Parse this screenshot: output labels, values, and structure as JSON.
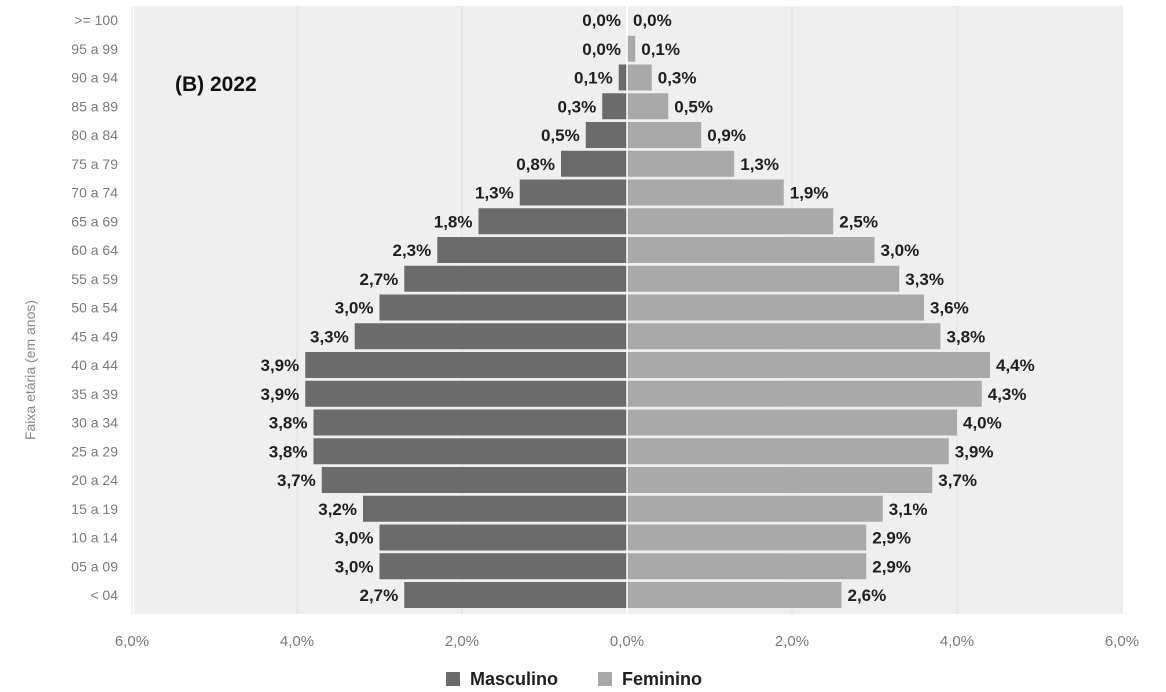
{
  "chart_data": {
    "type": "bar",
    "orientation": "horizontal-population-pyramid",
    "title": "(B) 2022",
    "ylabel": "Faixa etária (em anos)",
    "xlabel": "",
    "xlim": [
      -6.0,
      6.0
    ],
    "x_ticks": [
      "6,0%",
      "4,0%",
      "2,0%",
      "0,0%",
      "2,0%",
      "4,0%",
      "6,0%"
    ],
    "x_tick_values": [
      -6,
      -4,
      -2,
      0,
      2,
      4,
      6
    ],
    "grid": "vertical",
    "legend_position": "bottom",
    "categories": [
      ">= 100",
      "95 a 99",
      "90 a 94",
      "85 a 89",
      "80 a 84",
      "75 a 79",
      "70 a 74",
      "65 a 69",
      "60 a 64",
      "55 a 59",
      "50 a 54",
      "45 a 49",
      "40 a 44",
      "35 a 39",
      "30 a 34",
      "25 a 29",
      "20 a 24",
      "15 a 19",
      "10 a 14",
      "05 a 09",
      "< 04"
    ],
    "series": [
      {
        "name": "Masculino",
        "color": "#6b6b6b",
        "side": "left",
        "values": [
          0.0,
          0.0,
          0.1,
          0.3,
          0.5,
          0.8,
          1.3,
          1.8,
          2.3,
          2.7,
          3.0,
          3.3,
          3.9,
          3.9,
          3.8,
          3.8,
          3.7,
          3.2,
          3.0,
          3.0,
          2.7
        ],
        "labels": [
          "0,0%",
          "0,0%",
          "0,1%",
          "0,3%",
          "0,5%",
          "0,8%",
          "1,3%",
          "1,8%",
          "2,3%",
          "2,7%",
          "3,0%",
          "3,3%",
          "3,9%",
          "3,9%",
          "3,8%",
          "3,8%",
          "3,7%",
          "3,2%",
          "3,0%",
          "3,0%",
          "2,7%"
        ]
      },
      {
        "name": "Feminino",
        "color": "#a9a9a9",
        "side": "right",
        "values": [
          0.0,
          0.1,
          0.3,
          0.5,
          0.9,
          1.3,
          1.9,
          2.5,
          3.0,
          3.3,
          3.6,
          3.8,
          4.4,
          4.3,
          4.0,
          3.9,
          3.7,
          3.1,
          2.9,
          2.9,
          2.6
        ],
        "labels": [
          "0,0%",
          "0,1%",
          "0,3%",
          "0,5%",
          "0,9%",
          "1,3%",
          "1,9%",
          "2,5%",
          "3,0%",
          "3,3%",
          "3,6%",
          "3,8%",
          "4,4%",
          "4,3%",
          "4,0%",
          "3,9%",
          "3,7%",
          "3,1%",
          "2,9%",
          "2,9%",
          "2,6%"
        ]
      }
    ],
    "plot_background": "#efefef"
  }
}
